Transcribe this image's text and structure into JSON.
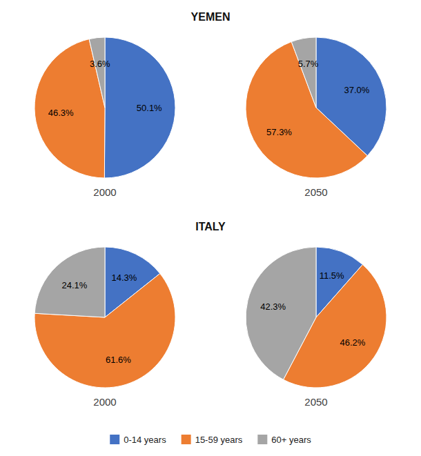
{
  "chart_data": [
    {
      "type": "pie",
      "title": "YEMEN",
      "categories": [
        "0-14 years",
        "15-59 years",
        "60+ years"
      ],
      "colors": [
        "#4472c4",
        "#ed7d31",
        "#a5a5a5"
      ],
      "data_labels": true,
      "legend": "bottom",
      "series": [
        {
          "name": "2000",
          "values": [
            50.1,
            46.3,
            3.6
          ],
          "value_labels": [
            "50.1%",
            "46.3%",
            "3.6%"
          ]
        },
        {
          "name": "2050",
          "values": [
            37.0,
            57.3,
            5.7
          ],
          "value_labels": [
            "37.0%",
            "57.3%",
            "5.7%"
          ]
        }
      ]
    },
    {
      "type": "pie",
      "title": "ITALY",
      "categories": [
        "0-14 years",
        "15-59 years",
        "60+ years"
      ],
      "colors": [
        "#4472c4",
        "#ed7d31",
        "#a5a5a5"
      ],
      "data_labels": true,
      "series": [
        {
          "name": "2000",
          "values": [
            14.3,
            61.6,
            24.1
          ],
          "value_labels": [
            "14.3%",
            "61.6%",
            "24.1%"
          ]
        },
        {
          "name": "2050",
          "values": [
            11.5,
            46.2,
            42.3
          ],
          "value_labels": [
            "11.5%",
            "46.2%",
            "42.3%"
          ]
        }
      ]
    }
  ]
}
